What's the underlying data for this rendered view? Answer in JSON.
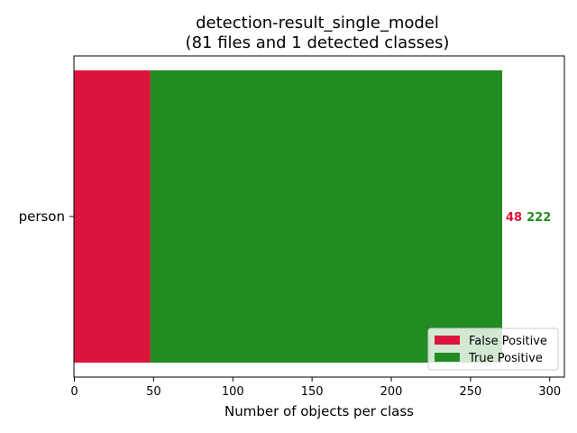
{
  "chart_data": {
    "type": "bar",
    "orientation": "horizontal",
    "stacked": true,
    "title_lines": [
      "detection-result_single_model",
      "(81 files and 1 detected classes)"
    ],
    "xlabel": "Number of objects per class",
    "ylabel": "",
    "categories": [
      "person"
    ],
    "series": [
      {
        "name": "False Positive",
        "values": [
          48
        ],
        "color": "#dc143c"
      },
      {
        "name": "True Positive",
        "values": [
          222
        ],
        "color": "#228b22"
      }
    ],
    "xlim": [
      0,
      310
    ],
    "xticks": [
      0,
      50,
      100,
      150,
      200,
      250,
      300
    ],
    "grid": false,
    "legend_position": "lower-right"
  }
}
